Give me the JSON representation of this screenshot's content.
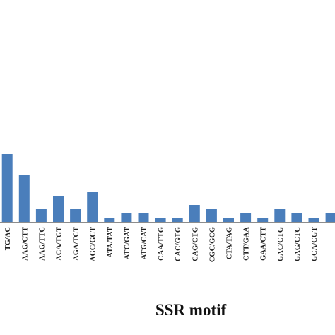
{
  "chart_data": {
    "type": "bar",
    "xlabel": "SSR motif",
    "ylabel": "",
    "categories": [
      "TG/AC",
      "AAG/CTT",
      "AAG/TTC",
      "ACA/TGT",
      "AGA/TCT",
      "AGC/GCT",
      "ATA/TAT",
      "ATC/GAT",
      "ATG/CAT",
      "CAA/TTG",
      "CAC/GTG",
      "CAG/CTG",
      "CGC/GCG",
      "CTA/TAG",
      "CTT/GAA",
      "GAA/CTT",
      "GAC/CTG",
      "GAG/CTC",
      "GCA/CGT",
      ""
    ],
    "values": [
      16,
      11,
      3,
      6,
      3,
      7,
      1,
      2,
      2,
      1,
      1,
      4,
      3,
      1,
      2,
      1,
      3,
      2,
      1,
      2
    ],
    "ylim": [
      0,
      16
    ],
    "grid": false,
    "colors": {
      "bar": "#4a7ebb",
      "axis": "#8c8c8c"
    }
  }
}
